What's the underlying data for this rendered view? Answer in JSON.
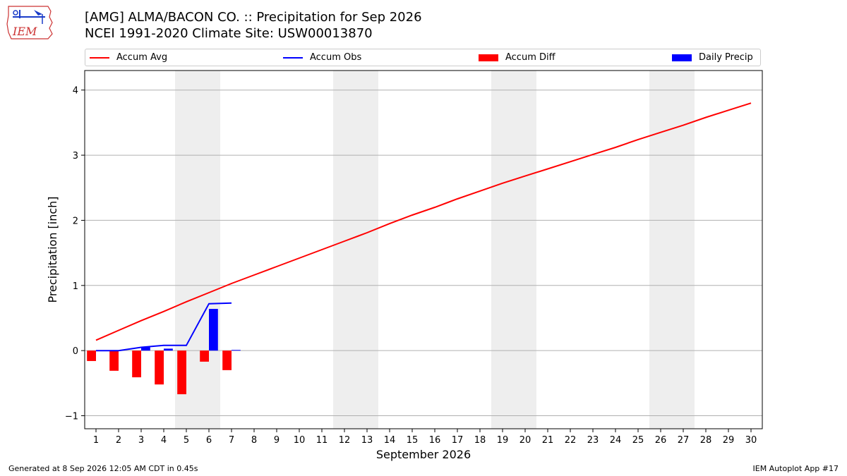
{
  "header": {
    "title_line1": "[AMG] ALMA/BACON CO. :: Precipitation for Sep 2026",
    "title_line2": "NCEI 1991-2020 Climate Site: USW00013870",
    "logo_text": "IEM"
  },
  "legend": {
    "items": [
      {
        "label": "Accum Avg",
        "kind": "line",
        "color": "#ff0000"
      },
      {
        "label": "Accum Obs",
        "kind": "line",
        "color": "#0000ff"
      },
      {
        "label": "Accum Diff",
        "kind": "patch",
        "color": "#ff0000"
      },
      {
        "label": "Daily Precip",
        "kind": "patch",
        "color": "#0000ff"
      }
    ]
  },
  "footer": {
    "generated": "Generated at 8 Sep 2026 12:05 AM CDT in 0.45s",
    "app": "IEM Autoplot App #17"
  },
  "chart_data": {
    "type": "line",
    "xlabel": "September 2026",
    "ylabel": "Precipitation [inch]",
    "xlim": [
      0.5,
      30.5
    ],
    "ylim": [
      -1.2,
      4.3
    ],
    "yticks": [
      -1,
      0,
      1,
      2,
      3,
      4
    ],
    "ytick_labels": [
      "−1",
      "0",
      "1",
      "2",
      "3",
      "4"
    ],
    "x": [
      1,
      2,
      3,
      4,
      5,
      6,
      7,
      8,
      9,
      10,
      11,
      12,
      13,
      14,
      15,
      16,
      17,
      18,
      19,
      20,
      21,
      22,
      23,
      24,
      25,
      26,
      27,
      28,
      29,
      30
    ],
    "grid": "horizontal",
    "weekend_shading": [
      [
        4.5,
        6.5
      ],
      [
        11.5,
        13.5
      ],
      [
        18.5,
        20.5
      ],
      [
        25.5,
        27.5
      ]
    ],
    "series": [
      {
        "name": "Accum Avg",
        "kind": "line",
        "color": "#ff0000",
        "x": [
          1,
          2,
          3,
          4,
          5,
          6,
          7,
          8,
          9,
          10,
          11,
          12,
          13,
          14,
          15,
          16,
          17,
          18,
          19,
          20,
          21,
          22,
          23,
          24,
          25,
          26,
          27,
          28,
          29,
          30
        ],
        "values": [
          0.16,
          0.31,
          0.46,
          0.6,
          0.75,
          0.89,
          1.03,
          1.16,
          1.29,
          1.42,
          1.55,
          1.68,
          1.81,
          1.95,
          2.08,
          2.2,
          2.33,
          2.45,
          2.57,
          2.68,
          2.79,
          2.9,
          3.01,
          3.12,
          3.24,
          3.35,
          3.46,
          3.58,
          3.69,
          3.8
        ]
      },
      {
        "name": "Accum Obs",
        "kind": "line",
        "color": "#0000ff",
        "x": [
          1,
          2,
          3,
          4,
          5,
          6,
          7
        ],
        "values": [
          0.0,
          0.0,
          0.05,
          0.08,
          0.08,
          0.72,
          0.73
        ]
      },
      {
        "name": "Accum Diff",
        "kind": "bar",
        "color": "#ff0000",
        "x": [
          1,
          2,
          3,
          4,
          5,
          6,
          7
        ],
        "values": [
          -0.16,
          -0.31,
          -0.41,
          -0.52,
          -0.67,
          -0.17,
          -0.3
        ]
      },
      {
        "name": "Daily Precip",
        "kind": "bar",
        "color": "#0000ff",
        "x": [
          1,
          2,
          3,
          4,
          5,
          6,
          7
        ],
        "values": [
          0.0,
          0.0,
          0.05,
          0.03,
          0.0,
          0.64,
          0.01
        ]
      }
    ]
  }
}
